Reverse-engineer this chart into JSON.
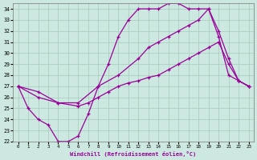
{
  "xlabel": "Windchill (Refroidissement éolien,°C)",
  "bg_color": "#cde8e0",
  "grid_color": "#aacfbf",
  "line_color": "#990099",
  "xlim": [
    -0.5,
    23.5
  ],
  "ylim": [
    22,
    34.5
  ],
  "xticks": [
    0,
    1,
    2,
    3,
    4,
    5,
    6,
    7,
    8,
    9,
    10,
    11,
    12,
    13,
    14,
    15,
    16,
    17,
    18,
    19,
    20,
    21,
    22,
    23
  ],
  "yticks": [
    22,
    23,
    24,
    25,
    26,
    27,
    28,
    29,
    30,
    31,
    32,
    33,
    34
  ],
  "series": [
    {
      "x": [
        0,
        1,
        2,
        3,
        4,
        5,
        6,
        7,
        8,
        9,
        10,
        11,
        12,
        13,
        14,
        15,
        16,
        17,
        18,
        19,
        20,
        21,
        22,
        23
      ],
      "y": [
        27,
        25,
        24,
        23.5,
        22,
        22,
        22.5,
        24.5,
        27,
        29,
        31.5,
        33,
        34,
        34,
        34,
        34.5,
        34.5,
        34,
        34,
        34,
        31.5,
        28,
        27.5,
        27
      ]
    },
    {
      "x": [
        0,
        2,
        4,
        6,
        8,
        10,
        12,
        13,
        14,
        15,
        16,
        17,
        18,
        19,
        20,
        21,
        22,
        23
      ],
      "y": [
        27,
        26,
        25.5,
        25.5,
        27,
        28,
        29.5,
        30.5,
        31,
        31.5,
        32,
        32.5,
        33,
        34,
        32,
        29.5,
        27.5,
        27
      ]
    },
    {
      "x": [
        0,
        2,
        4,
        6,
        7,
        8,
        9,
        10,
        11,
        12,
        13,
        14,
        15,
        16,
        17,
        18,
        19,
        20,
        21,
        22,
        23
      ],
      "y": [
        27,
        26.5,
        25.5,
        25.2,
        25.5,
        26,
        26.5,
        27,
        27.3,
        27.5,
        27.8,
        28,
        28.5,
        29,
        29.5,
        30,
        30.5,
        31,
        29,
        27.5,
        27
      ]
    }
  ]
}
